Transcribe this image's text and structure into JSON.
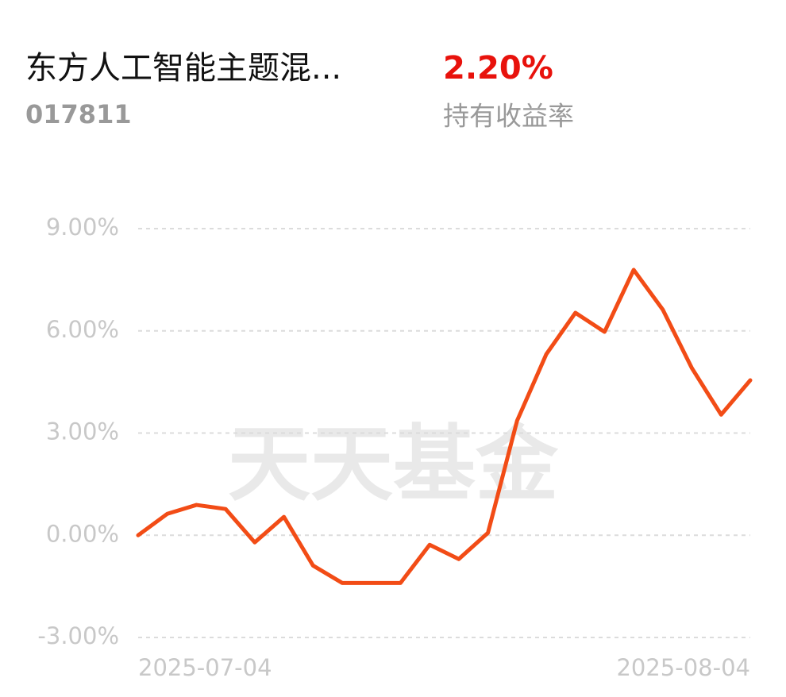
{
  "header": {
    "title": "东方人工智能主题混...",
    "code": "017811",
    "return_value": "2.20%",
    "return_label": "持有收益率"
  },
  "chart_data": {
    "type": "line",
    "watermark": "天天基金",
    "categories": [
      "2025-07-04",
      null,
      null,
      null,
      null,
      null,
      null,
      null,
      null,
      null,
      null,
      null,
      null,
      null,
      null,
      null,
      null,
      null,
      null,
      null,
      null,
      "2025-08-04"
    ],
    "values": [
      0,
      0.63,
      0.89,
      0.77,
      -0.21,
      0.54,
      -0.89,
      -1.4,
      -1.4,
      -1.4,
      -0.28,
      -0.7,
      0.07,
      3.36,
      5.31,
      6.53,
      5.97,
      7.79,
      6.62,
      4.9,
      3.54,
      4.55
    ],
    "color": "#f24c16",
    "ylim": [
      -3,
      9
    ],
    "yticks": [
      {
        "value": 9,
        "label": "9.00%"
      },
      {
        "value": 6,
        "label": "6.00%"
      },
      {
        "value": 3,
        "label": "3.00%"
      },
      {
        "value": 0,
        "label": "0.00%"
      },
      {
        "value": -3,
        "label": "-3.00%"
      }
    ],
    "grid": true
  }
}
